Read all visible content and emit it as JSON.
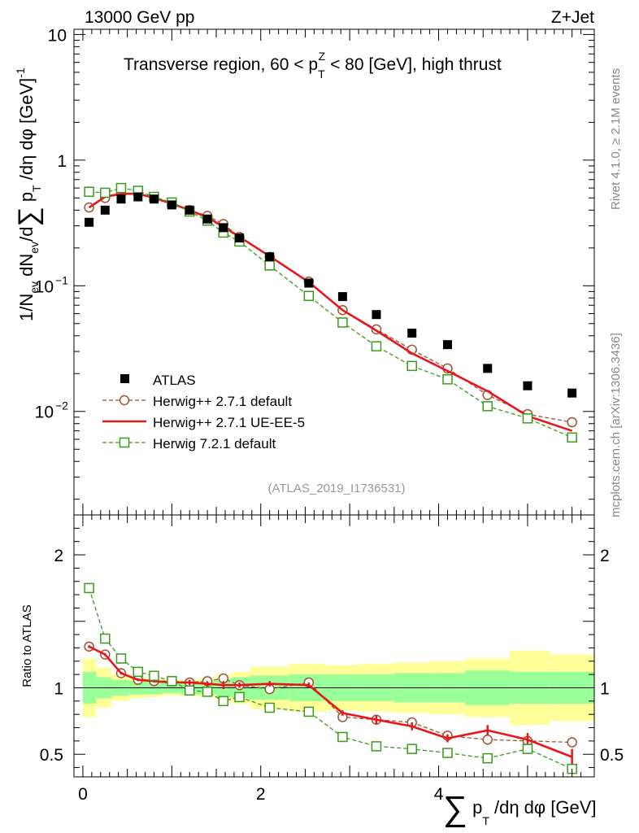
{
  "header": {
    "energy_label": "13000 GeV pp",
    "process_label": "Z+Jet",
    "rivet_label": "Rivet 4.1.0, ≥ 2.1M events",
    "mcplots_label": "mcplots.cern.ch [arXiv:1306.3436]"
  },
  "chart_data": {
    "type": "line",
    "title": "Transverse region, 60 < p_T^Z < 80 [GeV], high thrust",
    "title_parts": {
      "prefix": "Transverse region, 60 < p",
      "sub": "T",
      "sup": "Z",
      "suffix": " < 80 [GeV], high thrust"
    },
    "analysis_label": "(ATLAS_2019_I1736531)",
    "ylabel_main": "1/N_ev dN_ev/d∑ p_T/dη dφ [GeV]^-1",
    "ylabel_ratio": "Ratio to ATLAS",
    "xlabel": "∑ p_T/dη dφ [GeV]",
    "xlim": [
      -0.1,
      5.75
    ],
    "ylim_main": [
      0.0015,
      11
    ],
    "yscale_main": "log",
    "ylim_ratio": [
      0.33,
      2.3
    ],
    "x_ticks": [
      0,
      2,
      4
    ],
    "main_y_ticks": [
      {
        "value": 10,
        "label": "10",
        "exp": ""
      },
      {
        "value": 1,
        "label": "1",
        "exp": ""
      },
      {
        "value": 0.1,
        "label": "10",
        "exp": "−1"
      },
      {
        "value": 0.01,
        "label": "10",
        "exp": "−2"
      }
    ],
    "ratio_y_ticks": [
      {
        "value": 2,
        "label": "2"
      },
      {
        "value": 1,
        "label": "1"
      },
      {
        "value": 0.5,
        "label": "0.5"
      }
    ],
    "x": [
      0.07,
      0.25,
      0.43,
      0.62,
      0.8,
      1.0,
      1.2,
      1.4,
      1.58,
      1.76,
      2.1,
      2.54,
      2.92,
      3.3,
      3.7,
      4.1,
      4.55,
      5.0,
      5.5
    ],
    "data": {
      "name": "ATLAS",
      "values": [
        0.32,
        0.4,
        0.49,
        0.51,
        0.49,
        0.44,
        0.4,
        0.34,
        0.29,
        0.24,
        0.17,
        0.105,
        0.082,
        0.059,
        0.042,
        0.034,
        0.022,
        0.016,
        0.014
      ]
    },
    "bands": {
      "edges": [
        0,
        0.15,
        0.32,
        0.52,
        0.7,
        0.9,
        1.1,
        1.3,
        1.5,
        1.68,
        1.88,
        2.32,
        2.74,
        3.1,
        3.5,
        3.9,
        4.3,
        4.8,
        5.25,
        5.75
      ],
      "inner": [
        0.12,
        0.08,
        0.06,
        0.05,
        0.05,
        0.04,
        0.05,
        0.05,
        0.07,
        0.08,
        0.09,
        0.1,
        0.1,
        0.1,
        0.11,
        0.11,
        0.13,
        0.12,
        0.12
      ],
      "outer": [
        0.22,
        0.15,
        0.1,
        0.08,
        0.07,
        0.06,
        0.06,
        0.07,
        0.1,
        0.12,
        0.16,
        0.18,
        0.17,
        0.18,
        0.19,
        0.2,
        0.22,
        0.28,
        0.25
      ]
    },
    "series": [
      {
        "name": "Herwig++ 2.7.1 default",
        "color": "#a0522d",
        "style": "dashed",
        "marker": "circle",
        "values": [
          0.42,
          0.5,
          0.54,
          0.54,
          0.5,
          0.46,
          0.4,
          0.36,
          0.31,
          0.245,
          0.17,
          0.108,
          0.064,
          0.045,
          0.031,
          0.022,
          0.0135,
          0.0095,
          0.0082
        ]
      },
      {
        "name": "Herwig++ 2.7.1 UE-EE-5",
        "color": "#e8161c",
        "style": "solid",
        "marker": "none",
        "values": [
          0.42,
          0.51,
          0.54,
          0.54,
          0.5,
          0.45,
          0.4,
          0.35,
          0.295,
          0.245,
          0.172,
          0.107,
          0.064,
          0.044,
          0.029,
          0.021,
          0.0145,
          0.0092,
          0.007
        ]
      },
      {
        "name": "Herwig 7.2.1 default",
        "color": "#3a9a1a",
        "style": "dashed",
        "marker": "square",
        "values": [
          0.56,
          0.55,
          0.6,
          0.57,
          0.51,
          0.46,
          0.39,
          0.33,
          0.265,
          0.225,
          0.145,
          0.083,
          0.051,
          0.033,
          0.023,
          0.018,
          0.011,
          0.0088,
          0.0062
        ]
      }
    ],
    "ratios": [
      {
        "name": "Herwig++ 2.7.1 default",
        "values": [
          1.31,
          1.25,
          1.11,
          1.06,
          1.05,
          1.05,
          1.04,
          1.05,
          1.07,
          1.02,
          0.99,
          1.04,
          0.78,
          0.76,
          0.74,
          0.64,
          0.61,
          0.6,
          0.59
        ]
      },
      {
        "name": "Herwig++ 2.7.1 UE-EE-5",
        "values": [
          1.31,
          1.25,
          1.11,
          1.06,
          1.05,
          1.04,
          1.04,
          1.03,
          1.02,
          1.02,
          1.03,
          1.02,
          0.81,
          0.76,
          0.71,
          0.62,
          0.68,
          0.61,
          0.48
        ],
        "errors": [
          0.01,
          0.01,
          0.01,
          0.01,
          0.01,
          0.01,
          0.02,
          0.02,
          0.03,
          0.02,
          0.02,
          0.02,
          0.02,
          0.03,
          0.03,
          0.03,
          0.04,
          0.05,
          0.06
        ]
      },
      {
        "name": "Herwig 7.2.1 default",
        "values": [
          1.75,
          1.37,
          1.22,
          1.12,
          1.09,
          1.05,
          0.98,
          0.97,
          0.9,
          0.93,
          0.85,
          0.82,
          0.63,
          0.56,
          0.54,
          0.51,
          0.47,
          0.54,
          0.39
        ]
      }
    ]
  }
}
